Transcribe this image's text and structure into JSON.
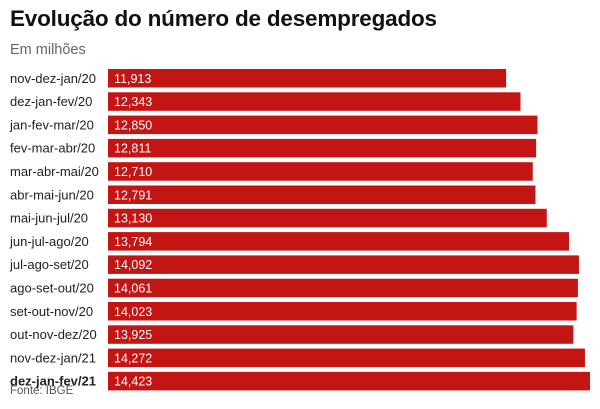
{
  "title": "Evolução do número de desempregados",
  "subtitle": "Em milhões",
  "source": "Fonte: IBGE",
  "colors": {
    "bar": "#c41515",
    "highlight": "#c41515"
  },
  "chart_data": {
    "type": "bar",
    "orientation": "horizontal",
    "categories": [
      "nov-dez-jan/20",
      "dez-jan-fev/20",
      "jan-fev-mar/20",
      "fev-mar-abr/20",
      "mar-abr-mai/20",
      "abr-mai-jun/20",
      "mai-jun-jul/20",
      "jun-jul-ago/20",
      "jul-ago-set/20",
      "ago-set-out/20",
      "set-out-nov/20",
      "out-nov-dez/20",
      "nov-dez-jan/21",
      "dez-jan-fev/21"
    ],
    "values": [
      11.913,
      12.343,
      12.85,
      12.811,
      12.71,
      12.791,
      13.13,
      13.794,
      14.092,
      14.061,
      14.023,
      13.925,
      14.272,
      14.423
    ],
    "value_labels": [
      "11,913",
      "12,343",
      "12,850",
      "12,811",
      "12,710",
      "12,791",
      "13,130",
      "13,794",
      "14,092",
      "14,061",
      "14,023",
      "13,925",
      "14,272",
      "14,423"
    ],
    "highlight_category": "dez-jan-fev/21",
    "xlim": [
      0,
      14.423
    ],
    "grid": false,
    "legend": "none"
  }
}
